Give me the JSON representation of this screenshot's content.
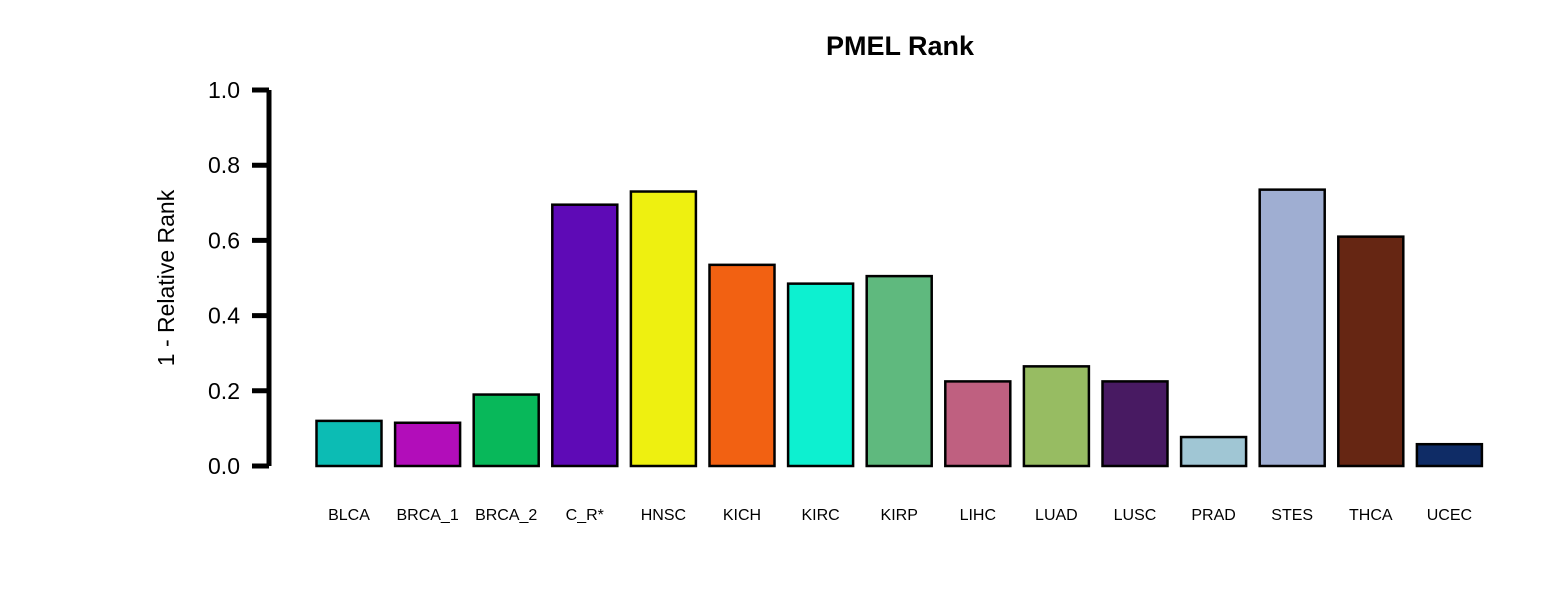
{
  "chart_data": {
    "type": "bar",
    "title": "PMEL Rank",
    "xlabel": "",
    "ylabel": "1 - Relative Rank",
    "ylim": [
      0,
      1
    ],
    "yticks": [
      "0.0",
      "0.2",
      "0.4",
      "0.6",
      "0.8",
      "1.0"
    ],
    "grid": false,
    "legend": "none",
    "categories": [
      "BLCA",
      "BRCA_1",
      "BRCA_2",
      "C_R*",
      "HNSC",
      "KICH",
      "KIRC",
      "KIRP",
      "LIHC",
      "LUAD",
      "LUSC",
      "PRAD",
      "STES",
      "THCA",
      "UCEC"
    ],
    "values": [
      0.12,
      0.115,
      0.19,
      0.695,
      0.73,
      0.535,
      0.485,
      0.505,
      0.225,
      0.265,
      0.225,
      0.077,
      0.735,
      0.61,
      0.058
    ],
    "colors": [
      "#0CBCB4",
      "#B20DBA",
      "#08B85A",
      "#5E0AB6",
      "#EEF010",
      "#F26112",
      "#0DF0D0",
      "#5FB97E",
      "#BF6080",
      "#97BC62",
      "#481A62",
      "#A0C6D4",
      "#9FAED2",
      "#662613",
      "#0F2C66"
    ]
  }
}
